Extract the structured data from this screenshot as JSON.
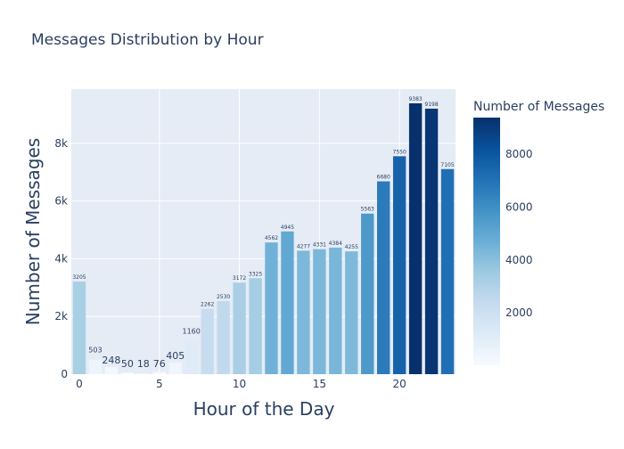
{
  "chart_data": {
    "type": "bar",
    "title": "Messages Distribution by Hour",
    "xlabel": "Hour of the Day",
    "ylabel": "Number of Messages",
    "x": [
      0,
      1,
      2,
      3,
      4,
      5,
      6,
      7,
      8,
      9,
      10,
      11,
      12,
      13,
      14,
      15,
      16,
      17,
      18,
      19,
      20,
      21,
      22,
      23
    ],
    "values": [
      3205,
      503,
      248,
      50,
      18,
      76,
      405,
      1160,
      2262,
      2530,
      3172,
      3325,
      4562,
      4945,
      4277,
      4331,
      4384,
      4255,
      5563,
      6680,
      7550,
      9383,
      9198,
      7105
    ],
    "value_labels": [
      "3205",
      "503",
      "248",
      "50",
      "18",
      "76",
      "405",
      "1160",
      "2262",
      "2530",
      "3172",
      "3325",
      "4562",
      "4945",
      "4277",
      "4331",
      "4384",
      "4255",
      "5563",
      "6680",
      "7550",
      "9383",
      "9198",
      "7105"
    ],
    "xlim": [
      -0.5,
      23.5
    ],
    "ylim": [
      0,
      9876
    ],
    "x_ticks": [
      0,
      5,
      10,
      15,
      20
    ],
    "x_tick_labels": [
      "0",
      "5",
      "10",
      "15",
      "20"
    ],
    "y_ticks": [
      0,
      2000,
      4000,
      6000,
      8000
    ],
    "y_tick_labels": [
      "0",
      "2k",
      "4k",
      "6k",
      "8k"
    ],
    "grid": true,
    "colorbar": {
      "title": "Number of Messages",
      "min": 18,
      "max": 9383,
      "ticks": [
        2000,
        4000,
        6000,
        8000
      ],
      "tick_labels": [
        "2000",
        "4000",
        "6000",
        "8000"
      ],
      "colorscale": [
        "#f7fbff",
        "#deebf7",
        "#c6dbef",
        "#9ecae1",
        "#6baed6",
        "#4292c6",
        "#2171b5",
        "#08519c",
        "#08306b"
      ]
    },
    "colors": {
      "plot_bg": "#e5ecf6",
      "grid": "#ffffff",
      "text": "#2a3f5f"
    }
  }
}
